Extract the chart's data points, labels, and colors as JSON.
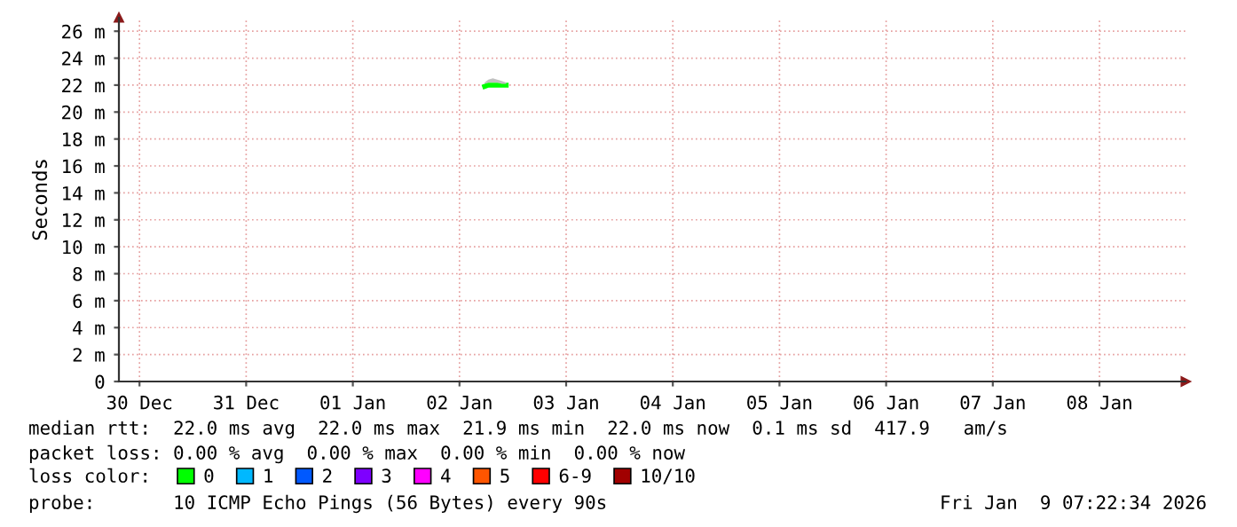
{
  "chart_data": {
    "type": "line",
    "ylabel": "Seconds",
    "x": [
      "2026-01-02T17:40",
      "2026-01-02T18:30",
      "2026-01-02T19:30",
      "2026-01-02T20:30",
      "2026-01-02T21:30",
      "2026-01-02T22:30"
    ],
    "series": [
      {
        "name": "0",
        "color": "#00ff00",
        "values": [
          21.9,
          22.0,
          22.0,
          22.0,
          22.0,
          22.0
        ],
        "lower": [
          22.1,
          22.2,
          22.2,
          22.2,
          22.1,
          22.1
        ],
        "upper": [
          22.2,
          22.4,
          22.5,
          22.4,
          22.3,
          22.2
        ]
      },
      {
        "name": "1",
        "color": "#00b8ff",
        "values": [
          null,
          null,
          null,
          null,
          null,
          null
        ]
      },
      {
        "name": "2",
        "color": "#0059ff",
        "values": [
          null,
          null,
          null,
          null,
          null,
          null
        ]
      },
      {
        "name": "3",
        "color": "#7e00ff",
        "values": [
          null,
          null,
          null,
          null,
          null,
          null
        ]
      },
      {
        "name": "4",
        "color": "#ff00ff",
        "values": [
          null,
          null,
          null,
          null,
          null,
          null
        ]
      },
      {
        "name": "5",
        "color": "#ff5500",
        "values": [
          null,
          null,
          null,
          null,
          null,
          null
        ]
      },
      {
        "name": "6-9",
        "color": "#ff0000",
        "values": [
          null,
          null,
          null,
          null,
          null,
          null
        ]
      },
      {
        "name": "10/10",
        "color": "#a10000",
        "values": [
          null,
          null,
          null,
          null,
          null,
          null
        ]
      }
    ],
    "xlim": [
      "2025-12-30T07:22",
      "2026-01-09T07:22"
    ],
    "xticks": [
      {
        "value": "2025-12-30T12:00",
        "label": "30 Dec"
      },
      {
        "value": "2025-12-31T12:00",
        "label": "31 Dec"
      },
      {
        "value": "2026-01-01T12:00",
        "label": "01 Jan"
      },
      {
        "value": "2026-01-02T12:00",
        "label": "02 Jan"
      },
      {
        "value": "2026-01-03T12:00",
        "label": "03 Jan"
      },
      {
        "value": "2026-01-04T12:00",
        "label": "04 Jan"
      },
      {
        "value": "2026-01-05T12:00",
        "label": "05 Jan"
      },
      {
        "value": "2026-01-06T12:00",
        "label": "06 Jan"
      },
      {
        "value": "2026-01-07T12:00",
        "label": "07 Jan"
      },
      {
        "value": "2026-01-08T12:00",
        "label": "08 Jan"
      }
    ],
    "ylim": [
      0,
      27
    ],
    "yticks": [
      0,
      {
        "value": 2,
        "label": "2 m"
      },
      {
        "value": 4,
        "label": "4 m"
      },
      {
        "value": 6,
        "label": "6 m"
      },
      {
        "value": 8,
        "label": "8 m"
      },
      {
        "value": 10,
        "label": "10 m"
      },
      {
        "value": 12,
        "label": "12 m"
      },
      {
        "value": 14,
        "label": "14 m"
      },
      {
        "value": 16,
        "label": "16 m"
      },
      {
        "value": 18,
        "label": "18 m"
      },
      {
        "value": 20,
        "label": "20 m"
      },
      {
        "value": 22,
        "label": "22 m"
      },
      {
        "value": 24,
        "label": "24 m"
      },
      {
        "value": 26,
        "label": "26 m"
      }
    ],
    "grid": true,
    "legend": "bottom",
    "legend_title": "loss color:",
    "marker": "none",
    "line_style": "solid",
    "annotations": [
      "median rtt:  22.0 ms avg  22.0 ms max  21.9 ms min  22.0 ms now  0.1 ms sd  417.9   am/s",
      "packet loss: 0.00 % avg  0.00 % max  0.00 % min  0.00 % now",
      "probe:       10 ICMP Echo Pings (56 Bytes) every 90s",
      "Fri Jan  9 07:22:34 2026"
    ]
  }
}
